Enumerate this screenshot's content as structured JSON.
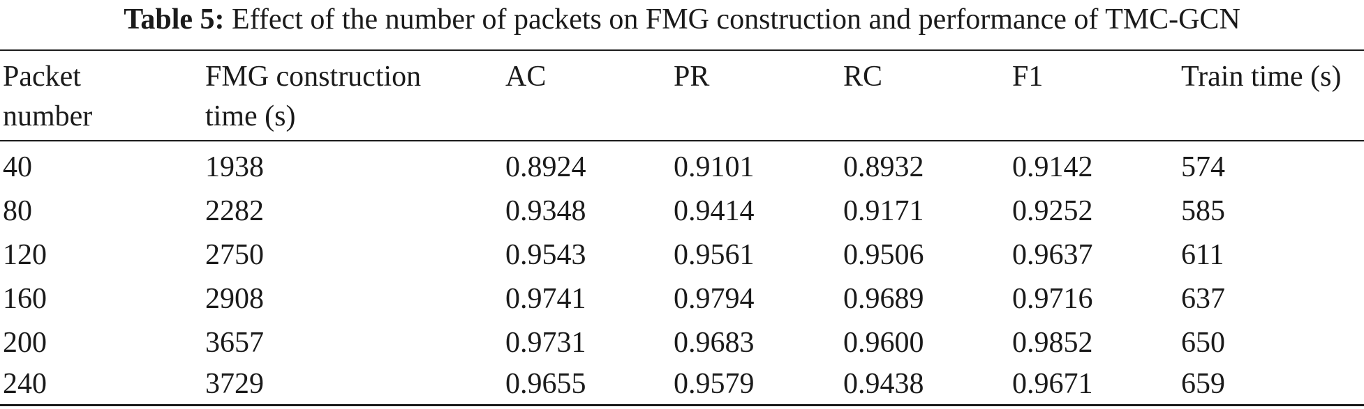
{
  "caption": {
    "label": "Table 5:",
    "text": "Effect of the number of packets on FMG construction and performance of TMC-GCN"
  },
  "table": {
    "headers": [
      [
        "Packet",
        "number"
      ],
      [
        "FMG construction",
        "time (s)"
      ],
      [
        "AC"
      ],
      [
        "PR"
      ],
      [
        "RC"
      ],
      [
        "F1"
      ],
      [
        "Train time (s)"
      ]
    ],
    "rows": [
      [
        "40",
        "1938",
        "0.8924",
        "0.9101",
        "0.8932",
        "0.9142",
        "574"
      ],
      [
        "80",
        "2282",
        "0.9348",
        "0.9414",
        "0.9171",
        "0.9252",
        "585"
      ],
      [
        "120",
        "2750",
        "0.9543",
        "0.9561",
        "0.9506",
        "0.9637",
        "611"
      ],
      [
        "160",
        "2908",
        "0.9741",
        "0.9794",
        "0.9689",
        "0.9716",
        "637"
      ],
      [
        "200",
        "3657",
        "0.9731",
        "0.9683",
        "0.9600",
        "0.9852",
        "650"
      ],
      [
        "240",
        "3729",
        "0.9655",
        "0.9579",
        "0.9438",
        "0.9671",
        "659"
      ]
    ]
  }
}
